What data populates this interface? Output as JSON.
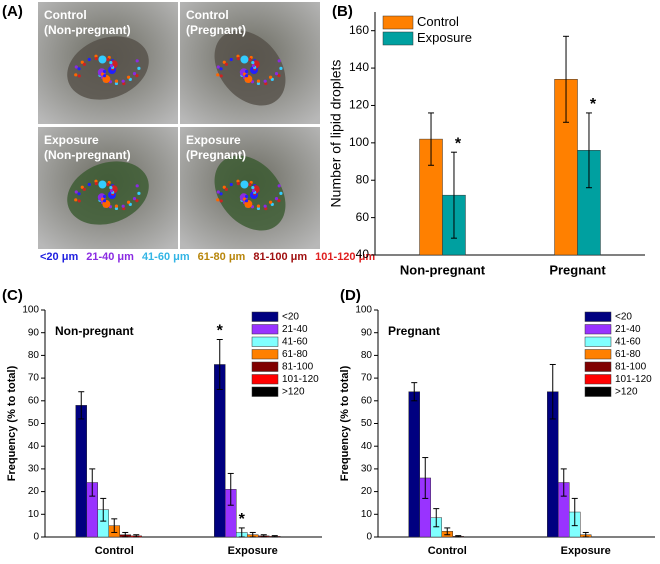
{
  "panel_a": {
    "label": "(A)",
    "images": [
      {
        "title": "Control",
        "subtitle": "(Non-pregnant)"
      },
      {
        "title": "Control",
        "subtitle": "(Pregnant)"
      },
      {
        "title": "Exposure",
        "subtitle": "(Non-pregnant)"
      },
      {
        "title": "Exposure",
        "subtitle": "(Pregnant)"
      }
    ],
    "scale": [
      {
        "text": "<20 μm",
        "color": "#2020e0"
      },
      {
        "text": "21-40 μm",
        "color": "#8a2be2"
      },
      {
        "text": "41-60 μm",
        "color": "#33b5e5"
      },
      {
        "text": "61-80 μm",
        "color": "#b8860b"
      },
      {
        "text": "81-100 μm",
        "color": "#a01010"
      },
      {
        "text": "101-120 μm",
        "color": "#e02020"
      }
    ]
  },
  "chart_data": [
    {
      "type": "bar",
      "panel": "(B)",
      "ylabel": "Number of lipid droplets",
      "categories": [
        "Non-pregnant",
        "Pregnant"
      ],
      "series": [
        {
          "name": "Control",
          "color": "#ff8000",
          "values": [
            102,
            134
          ],
          "errors": [
            14,
            23
          ],
          "significance": [
            null,
            null
          ]
        },
        {
          "name": "Exposure",
          "color": "#00a0a0",
          "values": [
            72,
            96
          ],
          "errors": [
            23,
            20
          ],
          "significance": [
            "*",
            "*"
          ]
        }
      ],
      "ylim": [
        40,
        170
      ],
      "yticks": [
        40,
        60,
        80,
        100,
        120,
        140,
        160
      ],
      "legend": "upper left"
    },
    {
      "type": "bar",
      "panel": "(C)",
      "subtitle": "Non-pregnant",
      "ylabel": "Frequency (% to total)",
      "categories": [
        "Control",
        "Exposure"
      ],
      "series": [
        {
          "name": "<20",
          "color": "#000080",
          "values": [
            58,
            76
          ],
          "errors": [
            6,
            11
          ],
          "significance": [
            null,
            "*"
          ]
        },
        {
          "name": "21-40",
          "color": "#9933ff",
          "values": [
            24,
            21
          ],
          "errors": [
            6,
            7
          ],
          "significance": [
            null,
            null
          ]
        },
        {
          "name": "41-60",
          "color": "#80ffff",
          "values": [
            12,
            2
          ],
          "errors": [
            5,
            2
          ],
          "significance": [
            null,
            "*"
          ]
        },
        {
          "name": "61-80",
          "color": "#ff8000",
          "values": [
            5,
            1
          ],
          "errors": [
            3,
            1
          ],
          "significance": [
            null,
            null
          ]
        },
        {
          "name": "81-100",
          "color": "#800000",
          "values": [
            1,
            0.5
          ],
          "errors": [
            1,
            0.5
          ],
          "significance": [
            null,
            null
          ]
        },
        {
          "name": "101-120",
          "color": "#ff0000",
          "values": [
            0.5,
            0.3
          ],
          "errors": [
            0.5,
            0.3
          ],
          "significance": [
            null,
            null
          ]
        },
        {
          "name": ">120",
          "color": "#000000",
          "values": [
            0,
            0
          ],
          "errors": [
            0,
            0
          ],
          "significance": [
            null,
            null
          ]
        }
      ],
      "ylim": [
        0,
        100
      ],
      "yticks": [
        0,
        10,
        20,
        30,
        40,
        50,
        60,
        70,
        80,
        90,
        100
      ],
      "legend": "upper right"
    },
    {
      "type": "bar",
      "panel": "(D)",
      "subtitle": "Pregnant",
      "ylabel": "Frequency (% to total)",
      "categories": [
        "Control",
        "Exposure"
      ],
      "series": [
        {
          "name": "<20",
          "color": "#000080",
          "values": [
            64,
            64
          ],
          "errors": [
            4,
            12
          ],
          "significance": [
            null,
            null
          ]
        },
        {
          "name": "21-40",
          "color": "#9933ff",
          "values": [
            26,
            24
          ],
          "errors": [
            9,
            6
          ],
          "significance": [
            null,
            null
          ]
        },
        {
          "name": "41-60",
          "color": "#80ffff",
          "values": [
            8.5,
            11
          ],
          "errors": [
            4,
            6
          ],
          "significance": [
            null,
            null
          ]
        },
        {
          "name": "61-80",
          "color": "#ff8000",
          "values": [
            2.5,
            1
          ],
          "errors": [
            1.5,
            1
          ],
          "significance": [
            null,
            null
          ]
        },
        {
          "name": "81-100",
          "color": "#800000",
          "values": [
            0.3,
            0
          ],
          "errors": [
            0.3,
            0
          ],
          "significance": [
            null,
            null
          ]
        },
        {
          "name": "101-120",
          "color": "#ff0000",
          "values": [
            0,
            0
          ],
          "errors": [
            0,
            0
          ],
          "significance": [
            null,
            null
          ]
        },
        {
          "name": ">120",
          "color": "#000000",
          "values": [
            0,
            0
          ],
          "errors": [
            0,
            0
          ],
          "significance": [
            null,
            null
          ]
        }
      ],
      "ylim": [
        0,
        100
      ],
      "yticks": [
        0,
        10,
        20,
        30,
        40,
        50,
        60,
        70,
        80,
        90,
        100
      ],
      "legend": "upper right"
    }
  ]
}
